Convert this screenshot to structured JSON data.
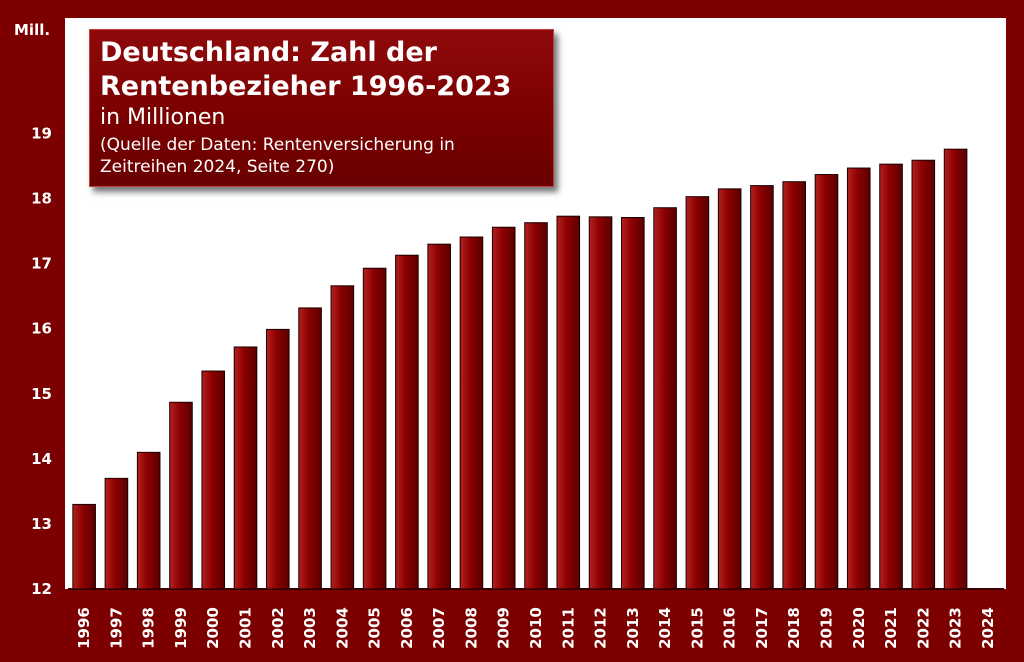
{
  "chart_data": {
    "type": "bar",
    "title": "Deutschland: Zahl der Rentenbezieher 1996-2023",
    "subtitle": "in Millionen",
    "source": "(Quelle der Daten: Rentenversicherung in Zeitreihen 2024, Seite 270)",
    "ylabel": "Mill.",
    "xlabel": "",
    "ylim": [
      12,
      19.9
    ],
    "yticks": [
      12,
      13,
      14,
      15,
      16,
      17,
      18,
      19
    ],
    "grid": false,
    "categories": [
      "1996",
      "1997",
      "1998",
      "1999",
      "2000",
      "2001",
      "2002",
      "2003",
      "2004",
      "2005",
      "2006",
      "2007",
      "2008",
      "2009",
      "2010",
      "2011",
      "2012",
      "2013",
      "2014",
      "2015",
      "2016",
      "2017",
      "2018",
      "2019",
      "2020",
      "2021",
      "2022",
      "2023",
      "2024"
    ],
    "values": [
      13.3,
      13.7,
      14.1,
      14.87,
      15.35,
      15.72,
      15.99,
      16.32,
      16.66,
      16.93,
      17.13,
      17.3,
      17.41,
      17.56,
      17.63,
      17.73,
      17.72,
      17.71,
      17.86,
      18.03,
      18.15,
      18.2,
      18.26,
      18.37,
      18.47,
      18.53,
      18.59,
      18.76,
      null
    ],
    "colors": {
      "bar": "#8b0000",
      "bar_light": "#b42020",
      "background": "#7d0000",
      "plot": "#ffffff",
      "text": "#ffffff"
    }
  }
}
